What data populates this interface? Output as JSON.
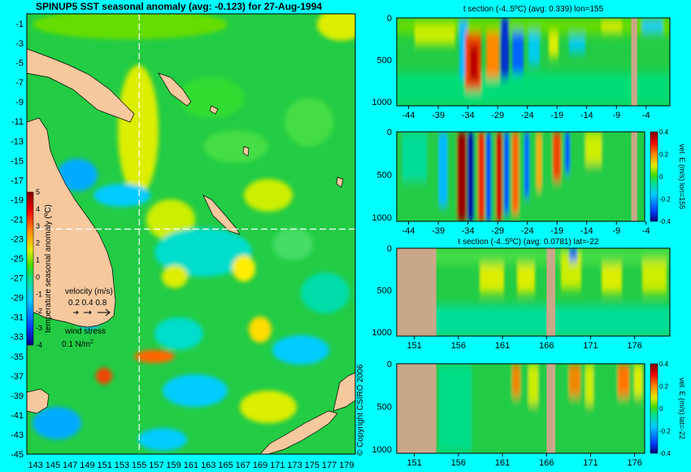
{
  "colors": {
    "background": "#00ffff",
    "land": "#f5c89e",
    "section_land": "#c8a888",
    "sea_base": "#22cc44",
    "dashed_line": "#ffffff"
  },
  "map": {
    "title": "SPINUP5 SST seasonal anomaly (avg: -0.123) for 27-Aug-1994",
    "lat_labels": [
      "-1",
      "-3",
      "-5",
      "-7",
      "-9",
      "-11",
      "-13",
      "-15",
      "-17",
      "-19",
      "-21",
      "-23",
      "-25",
      "-27",
      "-29",
      "-31",
      "-33",
      "-35",
      "-37",
      "-39",
      "-41",
      "-43",
      "-45"
    ],
    "lon_labels": [
      "143",
      "145",
      "147",
      "149",
      "151",
      "153",
      "155",
      "157",
      "159",
      "161",
      "163",
      "165",
      "167",
      "169",
      "171",
      "173",
      "175",
      "177",
      "179"
    ],
    "colorbar_ticks": [
      "5",
      "4",
      "3",
      "2",
      "1",
      "0",
      "-1",
      "-2",
      "-3",
      "-4"
    ],
    "colorbar_label": "temperature seasonal anomaly (ºC)",
    "velocity_label": "velocity (m/s)",
    "velocity_scale": "0.2 0.4 0.8",
    "wind_label": "wind stress",
    "wind_scale": "0.1 N/m",
    "wind_exp": "2",
    "copyright": "© Copyright CSIRO 2006",
    "section_lon": 155,
    "section_lat": -22
  },
  "panels": [
    {
      "title": "t section (-4..5ºC) (avg: 0.339) lon=155",
      "x_ticks": [
        "-44",
        "-39",
        "-34",
        "-29",
        "-24",
        "-19",
        "-14",
        "-9",
        "-4"
      ],
      "y_ticks": [
        "0",
        "500",
        "1000"
      ],
      "side_label": "",
      "cbar_ticks": []
    },
    {
      "title": "",
      "x_ticks": [
        "-44",
        "-39",
        "-34",
        "-29",
        "-24",
        "-19",
        "-14",
        "-9",
        "-4"
      ],
      "y_ticks": [
        "0",
        "500",
        "1000"
      ],
      "side_label": "vel. E (m/s) lon=155",
      "cbar_ticks": [
        "0.4",
        "0.2",
        "0",
        "-0.2",
        "-0.4"
      ]
    },
    {
      "title": "t section (-4..5ºC) (avg: 0.0781) lat=-22",
      "x_ticks": [
        "151",
        "156",
        "161",
        "166",
        "171",
        "176"
      ],
      "y_ticks": [
        "0",
        "500",
        "1000"
      ],
      "side_label": "",
      "cbar_ticks": []
    },
    {
      "title": "",
      "x_ticks": [
        "151",
        "156",
        "161",
        "166",
        "171",
        "176"
      ],
      "y_ticks": [
        "0",
        "500",
        "1000"
      ],
      "side_label": "vel. E (m/s) lat=-22",
      "cbar_ticks": [
        "0.4",
        "0.2",
        "0",
        "-0.2",
        "-0.4"
      ]
    }
  ],
  "chart_data": [
    {
      "type": "heatmap",
      "title": "SPINUP5 SST seasonal anomaly (avg: -0.123) for 27-Aug-1994",
      "xlabel": "",
      "ylabel": "",
      "xlim": [
        142,
        180
      ],
      "ylim": [
        -45,
        0
      ],
      "clim": [
        -4,
        5
      ],
      "colorbar_label": "temperature seasonal anomaly (ºC)",
      "avg": -0.123,
      "date": "27-Aug-1994"
    },
    {
      "type": "heatmap",
      "title": "t section (-4..5ºC) (avg: 0.339) lon=155",
      "xlim": [
        -46,
        0
      ],
      "ylim": [
        1050,
        0
      ],
      "clim": [
        -4,
        5
      ],
      "avg": 0.339,
      "features": [
        {
          "x": -33,
          "depth_top": 0,
          "depth_bottom": 950,
          "value": 4.5
        },
        {
          "x": -29.5,
          "depth_top": 0,
          "depth_bottom": 800,
          "value": 3
        },
        {
          "x": -27,
          "depth_top": 0,
          "depth_bottom": 750,
          "value": -3.5
        },
        {
          "x": -31.5,
          "depth_top": 0,
          "depth_bottom": 700,
          "value": -3
        },
        {
          "x": -24,
          "depth_top": 0,
          "depth_bottom": 700,
          "value": -1.5
        }
      ],
      "land_x": [
        -6.5,
        -5.5
      ]
    },
    {
      "type": "heatmap",
      "title": "vel. E (m/s) lon=155",
      "xlim": [
        -46,
        0
      ],
      "ylim": [
        1050,
        0
      ],
      "clim": [
        -0.4,
        0.4
      ],
      "features": [
        {
          "x": -33.5,
          "depth_top": 0,
          "depth_bottom": 1050,
          "value": 0.4
        },
        {
          "x": -31.5,
          "depth_top": 0,
          "depth_bottom": 1050,
          "value": -0.4
        },
        {
          "x": -28.5,
          "depth_top": 0,
          "depth_bottom": 1050,
          "value": 0.35
        },
        {
          "x": -26.5,
          "depth_top": 0,
          "depth_bottom": 1050,
          "value": -0.3
        },
        {
          "x": -24.5,
          "depth_top": 0,
          "depth_bottom": 900,
          "value": 0.25
        }
      ],
      "land_x": [
        -6.5,
        -5.5
      ]
    },
    {
      "type": "heatmap",
      "title": "t section (-4..5ºC) (avg: 0.0781) lat=-22",
      "xlim": [
        149,
        180
      ],
      "ylim": [
        1050,
        0
      ],
      "clim": [
        -4,
        5
      ],
      "avg": 0.0781,
      "features": [
        {
          "x": 158.5,
          "depth_top": 250,
          "depth_bottom": 550,
          "value": 2
        },
        {
          "x": 163,
          "depth_top": 250,
          "depth_bottom": 550,
          "value": 2
        },
        {
          "x": 168.5,
          "depth_top": 100,
          "depth_bottom": 500,
          "value": 2
        },
        {
          "x": 175,
          "depth_top": 250,
          "depth_bottom": 550,
          "value": 2.5
        },
        {
          "x": 178.5,
          "depth_top": 250,
          "depth_bottom": 550,
          "value": 2.5
        }
      ],
      "land_x": [
        [
          149,
          153.5
        ],
        [
          166,
          167
        ]
      ]
    },
    {
      "type": "heatmap",
      "title": "vel. E (m/s) lat=-22",
      "xlim": [
        149,
        180
      ],
      "ylim": [
        1050,
        0
      ],
      "clim": [
        -0.4,
        0.4
      ],
      "features": [
        {
          "x": 163,
          "depth_top": 0,
          "depth_bottom": 250,
          "value": 0.3
        },
        {
          "x": 170.5,
          "depth_top": 0,
          "depth_bottom": 250,
          "value": 0.3
        },
        {
          "x": 176,
          "depth_top": 0,
          "depth_bottom": 200,
          "value": 0.35
        },
        {
          "x": 167.5,
          "depth_top": 0,
          "depth_bottom": 300,
          "value": 0.2
        }
      ],
      "land_x": [
        [
          149,
          153.5
        ],
        [
          166,
          167
        ]
      ]
    }
  ]
}
